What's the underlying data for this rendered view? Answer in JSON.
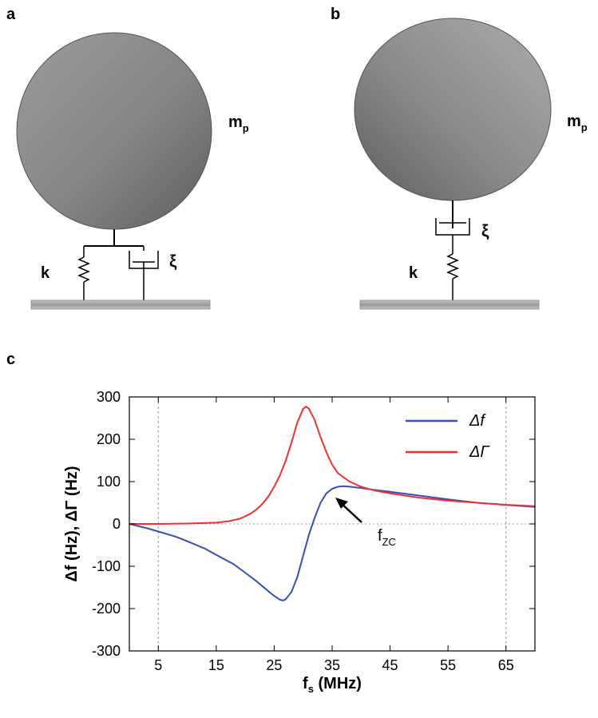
{
  "panels": {
    "a": {
      "letter": "a",
      "mass_label": "m",
      "mass_sub": "p",
      "spring_label": "k",
      "damper_label": "ξ"
    },
    "b": {
      "letter": "b",
      "mass_label": "m",
      "mass_sub": "p",
      "spring_label": "k",
      "damper_label": "ξ"
    },
    "c": {
      "letter": "c"
    }
  },
  "colors": {
    "sphere": "#808080",
    "substrate": "#a9a9a9",
    "delta_f": "#3450b8",
    "delta_gamma": "#f03030",
    "axis": "#000000",
    "grid": "#999999"
  },
  "chart_data": {
    "type": "line",
    "xlabel_main": "f",
    "xlabel_sub": "s",
    "xlabel_unit": " (MHz)",
    "ylabel": "Δf (Hz), ΔΓ (Hz)",
    "xlim": [
      0,
      70
    ],
    "ylim": [
      -300,
      300
    ],
    "xticks": [
      5,
      15,
      25,
      35,
      45,
      55,
      65
    ],
    "yticks": [
      -300,
      -200,
      -100,
      0,
      100,
      200,
      300
    ],
    "vertical_reference_lines": [
      5,
      65
    ],
    "horizontal_reference_line": 0,
    "legend_position": "top-right",
    "series": [
      {
        "name": "Δf",
        "color": "#3450b8",
        "x": [
          0,
          3,
          5,
          8,
          10,
          13,
          15,
          18,
          20,
          22,
          24,
          25,
          26,
          26.5,
          27,
          28,
          29,
          30,
          31,
          32,
          33,
          34,
          35,
          36,
          37,
          38,
          40,
          42,
          45,
          50,
          55,
          60,
          65,
          70
        ],
        "y": [
          0,
          -10,
          -18,
          -30,
          -41,
          -58,
          -73,
          -95,
          -115,
          -136,
          -159,
          -170,
          -179,
          -181,
          -178,
          -160,
          -125,
          -75,
          -25,
          15,
          50,
          72,
          83,
          88,
          89,
          88,
          85,
          81,
          76,
          67,
          58,
          50,
          45,
          40
        ]
      },
      {
        "name": "ΔΓ",
        "color": "#f03030",
        "x": [
          0,
          5,
          10,
          13,
          15,
          17,
          19,
          20,
          21,
          22,
          23,
          24,
          25,
          26,
          27,
          28,
          29,
          30,
          30.5,
          31,
          32,
          33,
          34,
          35,
          36,
          38,
          40,
          42,
          45,
          50,
          55,
          60,
          65,
          70
        ],
        "y": [
          0,
          0,
          1,
          2,
          3,
          6,
          12,
          18,
          25,
          35,
          48,
          65,
          88,
          115,
          150,
          193,
          240,
          272,
          277,
          272,
          245,
          205,
          170,
          140,
          120,
          100,
          88,
          80,
          72,
          62,
          55,
          50,
          45,
          42
        ]
      }
    ],
    "annotation": {
      "text_main": "f",
      "text_sub": "ZC",
      "points_to_x": 32
    }
  }
}
